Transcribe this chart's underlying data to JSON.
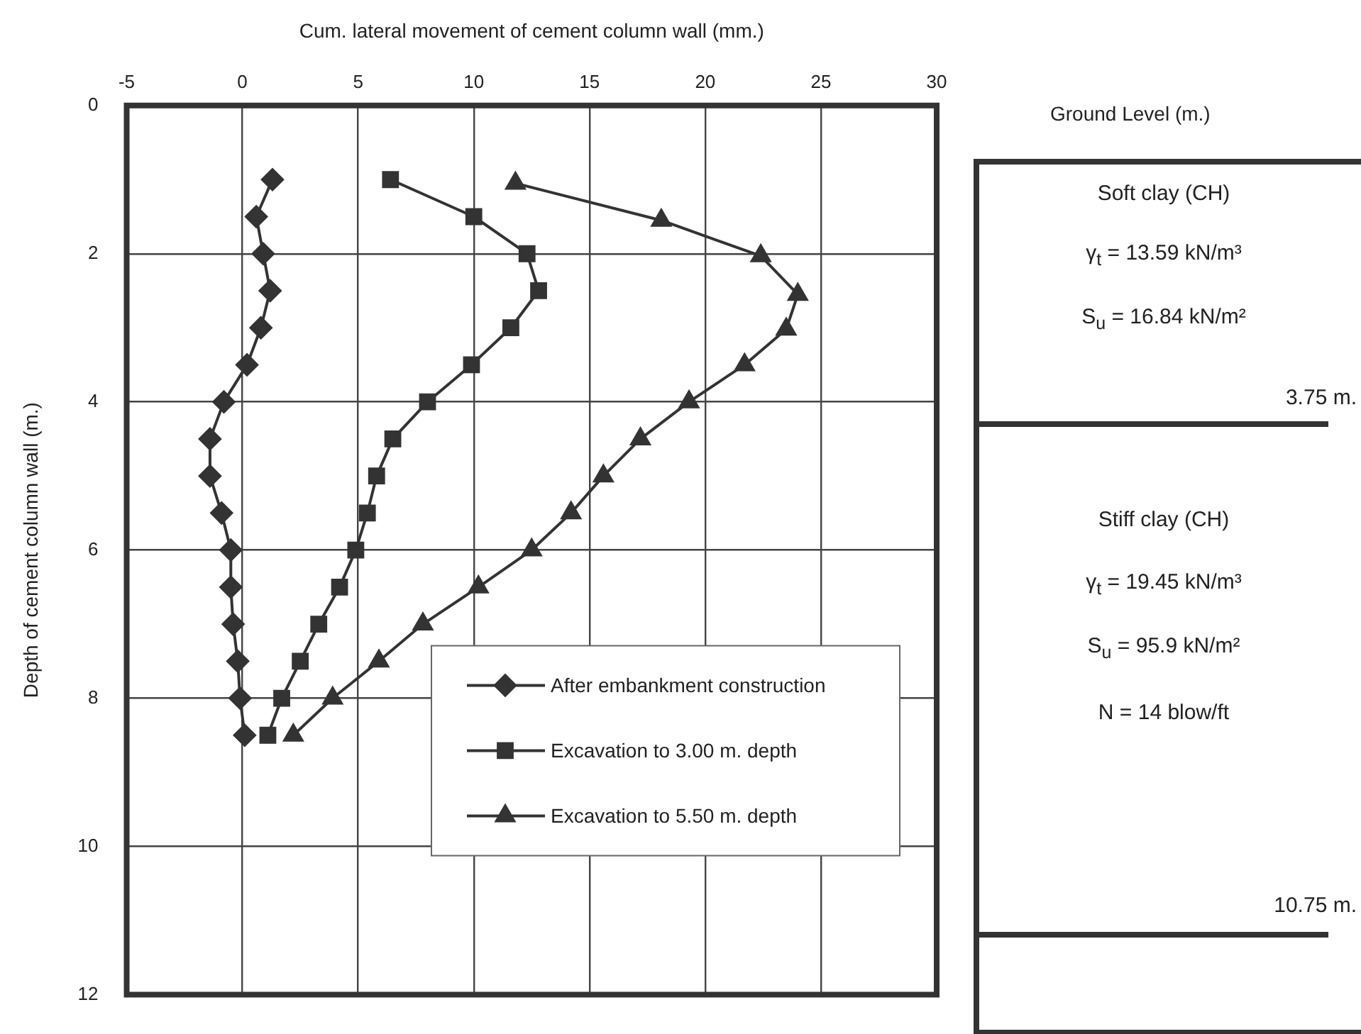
{
  "chart_data": [
    {
      "type": "line",
      "xlabel": "Cum. lateral movement of cement column wall (mm.)",
      "ylabel": "Depth of cement column wall (m.)",
      "xlim": [
        -5,
        30
      ],
      "xticks": [
        -5,
        0,
        5,
        10,
        15,
        20,
        25,
        30
      ],
      "ylim": [
        12,
        0
      ],
      "yticks": [
        0,
        2,
        4,
        6,
        8,
        10,
        12
      ],
      "grid": true,
      "legend": "bottom right",
      "line_style": "solid",
      "series": [
        {
          "name": "After embankment construction",
          "color": "#333333",
          "marker": "diamond",
          "x": [
            1.3,
            0.6,
            0.9,
            1.2,
            0.8,
            0.2,
            -0.8,
            -1.4,
            -1.4,
            -0.9,
            -0.5,
            -0.5,
            -0.4,
            -0.2,
            -0.1,
            0.1
          ],
          "values": [
            1,
            1.5,
            2,
            2.5,
            3,
            3.5,
            4,
            4.5,
            5,
            5.5,
            6,
            6.5,
            7,
            7.5,
            8,
            8.5
          ]
        },
        {
          "name": "Excavation to 3.00 m. depth",
          "color": "#333333",
          "marker": "square",
          "x": [
            6.4,
            10,
            12.3,
            12.8,
            11.6,
            9.9,
            8,
            6.5,
            5.8,
            5.4,
            4.9,
            4.2,
            3.3,
            2.5,
            1.7,
            1.1
          ],
          "values": [
            1,
            1.5,
            2,
            2.5,
            3,
            3.5,
            4,
            4.5,
            5,
            5.5,
            6,
            6.5,
            7,
            7.5,
            8,
            8.5
          ]
        },
        {
          "name": "Excavation to 5.50 m. depth",
          "color": "#333333",
          "marker": "triangle",
          "x": [
            11.8,
            18.1,
            22.4,
            24,
            23.5,
            21.7,
            19.3,
            17.2,
            15.6,
            14.2,
            12.5,
            10.2,
            7.8,
            5.9,
            3.9,
            2.2
          ],
          "values": [
            1.05,
            1.55,
            2.03,
            2.55,
            3.02,
            3.5,
            4,
            4.5,
            5,
            5.5,
            6,
            6.5,
            7,
            7.5,
            8,
            8.5
          ]
        }
      ]
    },
    {
      "type": "other",
      "title": "Ground Level (m.)",
      "annotations": [
        "Soft clay (CH)",
        "γ$_{t}$ = 13.59 kN/m³",
        "S$_{u}$ = 16.84 kN/m²",
        "3.75 m.",
        "Stiff clay (CH)",
        "γ$_{t}$ = 19.45 kN/m³",
        "S$_{u}$ = 95.9 kN/m²",
        "N = 14 blow/ft",
        "10.75 m."
      ]
    }
  ]
}
